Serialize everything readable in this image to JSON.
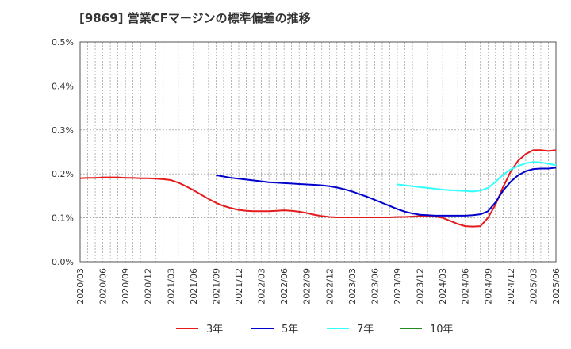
{
  "chart_data": {
    "type": "line",
    "title": "[9869]  営業CFマージンの標準偏差の推移",
    "xlabel": "",
    "ylabel": "",
    "ylim": [
      0,
      0.5
    ],
    "yticks": [
      "0.0%",
      "0.1%",
      "0.2%",
      "0.3%",
      "0.4%",
      "0.5%"
    ],
    "yticks_values": [
      0,
      0.1,
      0.2,
      0.3,
      0.4,
      0.5
    ],
    "xticks": [
      "2020/03",
      "2020/06",
      "2020/09",
      "2020/12",
      "2021/03",
      "2021/06",
      "2021/09",
      "2021/12",
      "2022/03",
      "2022/06",
      "2022/09",
      "2022/12",
      "2023/03",
      "2023/06",
      "2023/09",
      "2023/12",
      "2024/03",
      "2024/06",
      "2024/09",
      "2024/12",
      "2025/03",
      "2025/06"
    ],
    "grid": true,
    "legend_position": "bottom",
    "colors": {
      "s3": "#e41a1c",
      "s5": "#0000cc",
      "s7": "#33ffff",
      "s10": "#228b22"
    },
    "series": [
      {
        "name": "3年",
        "color": "#e41a1c",
        "points": [
          [
            "2020/03",
            0.19
          ],
          [
            "2020/04",
            0.191
          ],
          [
            "2020/05",
            0.191
          ],
          [
            "2020/06",
            0.192
          ],
          [
            "2020/07",
            0.192
          ],
          [
            "2020/08",
            0.192
          ],
          [
            "2020/09",
            0.191
          ],
          [
            "2020/10",
            0.191
          ],
          [
            "2020/11",
            0.19
          ],
          [
            "2020/12",
            0.19
          ],
          [
            "2021/01",
            0.189
          ],
          [
            "2021/02",
            0.188
          ],
          [
            "2021/03",
            0.186
          ],
          [
            "2021/04",
            0.18
          ],
          [
            "2021/05",
            0.172
          ],
          [
            "2021/06",
            0.163
          ],
          [
            "2021/07",
            0.153
          ],
          [
            "2021/08",
            0.143
          ],
          [
            "2021/09",
            0.134
          ],
          [
            "2021/10",
            0.127
          ],
          [
            "2021/11",
            0.122
          ],
          [
            "2021/12",
            0.118
          ],
          [
            "2022/01",
            0.116
          ],
          [
            "2022/02",
            0.115
          ],
          [
            "2022/03",
            0.115
          ],
          [
            "2022/04",
            0.115
          ],
          [
            "2022/05",
            0.116
          ],
          [
            "2022/06",
            0.117
          ],
          [
            "2022/07",
            0.116
          ],
          [
            "2022/08",
            0.114
          ],
          [
            "2022/09",
            0.111
          ],
          [
            "2022/10",
            0.107
          ],
          [
            "2022/11",
            0.104
          ],
          [
            "2022/12",
            0.102
          ],
          [
            "2023/01",
            0.101
          ],
          [
            "2023/02",
            0.101
          ],
          [
            "2023/03",
            0.101
          ],
          [
            "2023/04",
            0.101
          ],
          [
            "2023/05",
            0.101
          ],
          [
            "2023/06",
            0.101
          ],
          [
            "2023/07",
            0.101
          ],
          [
            "2023/08",
            0.101
          ],
          [
            "2023/09",
            0.102
          ],
          [
            "2023/10",
            0.102
          ],
          [
            "2023/11",
            0.103
          ],
          [
            "2023/12",
            0.104
          ],
          [
            "2024/01",
            0.104
          ],
          [
            "2024/02",
            0.103
          ],
          [
            "2024/03",
            0.1
          ],
          [
            "2024/04",
            0.093
          ],
          [
            "2024/05",
            0.086
          ],
          [
            "2024/06",
            0.081
          ],
          [
            "2024/07",
            0.08
          ],
          [
            "2024/08",
            0.081
          ],
          [
            "2024/09",
            0.1
          ],
          [
            "2024/10",
            0.13
          ],
          [
            "2024/11",
            0.17
          ],
          [
            "2024/12",
            0.205
          ],
          [
            "2025/01",
            0.23
          ],
          [
            "2025/02",
            0.245
          ],
          [
            "2025/03",
            0.254
          ],
          [
            "2025/04",
            0.254
          ],
          [
            "2025/05",
            0.252
          ],
          [
            "2025/06",
            0.254
          ]
        ]
      },
      {
        "name": "5年",
        "color": "#0000cc",
        "points": [
          [
            "2021/09",
            0.197
          ],
          [
            "2021/10",
            0.194
          ],
          [
            "2021/11",
            0.191
          ],
          [
            "2021/12",
            0.189
          ],
          [
            "2022/01",
            0.187
          ],
          [
            "2022/02",
            0.185
          ],
          [
            "2022/03",
            0.183
          ],
          [
            "2022/04",
            0.181
          ],
          [
            "2022/05",
            0.18
          ],
          [
            "2022/06",
            0.179
          ],
          [
            "2022/07",
            0.178
          ],
          [
            "2022/08",
            0.177
          ],
          [
            "2022/09",
            0.176
          ],
          [
            "2022/10",
            0.175
          ],
          [
            "2022/11",
            0.174
          ],
          [
            "2022/12",
            0.172
          ],
          [
            "2023/01",
            0.169
          ],
          [
            "2023/02",
            0.165
          ],
          [
            "2023/03",
            0.16
          ],
          [
            "2023/04",
            0.154
          ],
          [
            "2023/05",
            0.148
          ],
          [
            "2023/06",
            0.141
          ],
          [
            "2023/07",
            0.134
          ],
          [
            "2023/08",
            0.127
          ],
          [
            "2023/09",
            0.12
          ],
          [
            "2023/10",
            0.114
          ],
          [
            "2023/11",
            0.11
          ],
          [
            "2023/12",
            0.107
          ],
          [
            "2024/01",
            0.106
          ],
          [
            "2024/02",
            0.105
          ],
          [
            "2024/03",
            0.105
          ],
          [
            "2024/04",
            0.105
          ],
          [
            "2024/05",
            0.105
          ],
          [
            "2024/06",
            0.105
          ],
          [
            "2024/07",
            0.106
          ],
          [
            "2024/08",
            0.108
          ],
          [
            "2024/09",
            0.115
          ],
          [
            "2024/10",
            0.135
          ],
          [
            "2024/11",
            0.162
          ],
          [
            "2024/12",
            0.182
          ],
          [
            "2025/01",
            0.197
          ],
          [
            "2025/02",
            0.206
          ],
          [
            "2025/03",
            0.211
          ],
          [
            "2025/04",
            0.212
          ],
          [
            "2025/05",
            0.212
          ],
          [
            "2025/06",
            0.214
          ]
        ]
      },
      {
        "name": "7年",
        "color": "#33ffff",
        "points": [
          [
            "2023/09",
            0.176
          ],
          [
            "2023/10",
            0.174
          ],
          [
            "2023/11",
            0.172
          ],
          [
            "2023/12",
            0.17
          ],
          [
            "2024/01",
            0.168
          ],
          [
            "2024/02",
            0.166
          ],
          [
            "2024/03",
            0.164
          ],
          [
            "2024/04",
            0.163
          ],
          [
            "2024/05",
            0.162
          ],
          [
            "2024/06",
            0.161
          ],
          [
            "2024/07",
            0.16
          ],
          [
            "2024/08",
            0.162
          ],
          [
            "2024/09",
            0.168
          ],
          [
            "2024/10",
            0.182
          ],
          [
            "2024/11",
            0.198
          ],
          [
            "2024/12",
            0.21
          ],
          [
            "2025/01",
            0.218
          ],
          [
            "2025/02",
            0.224
          ],
          [
            "2025/03",
            0.227
          ],
          [
            "2025/04",
            0.226
          ],
          [
            "2025/05",
            0.223
          ],
          [
            "2025/06",
            0.22
          ]
        ]
      },
      {
        "name": "10年",
        "color": "#228b22",
        "points": []
      }
    ]
  }
}
